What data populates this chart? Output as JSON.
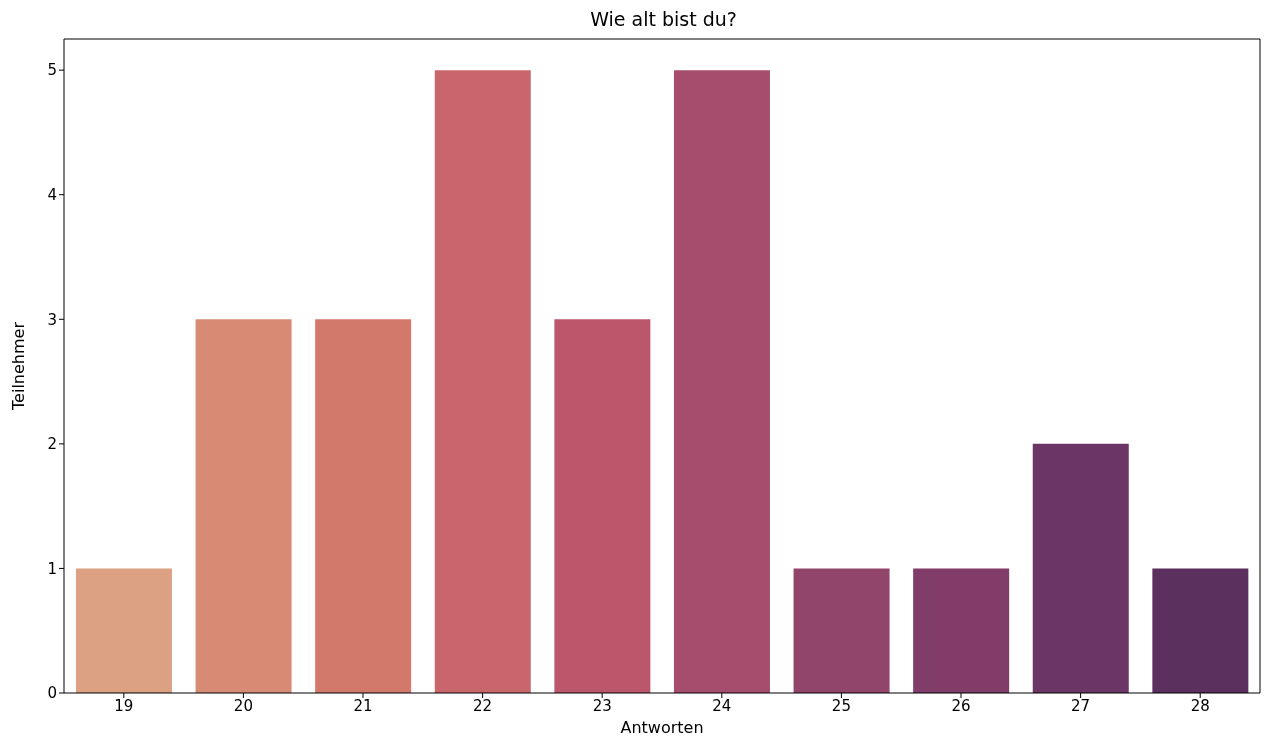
{
  "chart_data": {
    "type": "bar",
    "title": "Wie alt bist du?",
    "xlabel": "Antworten",
    "ylabel": "Teilnehmer",
    "categories": [
      "19",
      "20",
      "21",
      "22",
      "23",
      "24",
      "25",
      "26",
      "27",
      "28"
    ],
    "values": [
      1,
      3,
      3,
      5,
      3,
      5,
      1,
      1,
      2,
      1
    ],
    "colors": [
      "#dca083",
      "#d78b74",
      "#d2796c",
      "#c9666b",
      "#bc566b",
      "#a64c6d",
      "#92456a",
      "#813c6a",
      "#6b3565",
      "#5b2f5e"
    ],
    "ylim": [
      0,
      5.25
    ],
    "yticks": [
      0,
      1,
      2,
      3,
      4,
      5
    ],
    "grid": false
  }
}
